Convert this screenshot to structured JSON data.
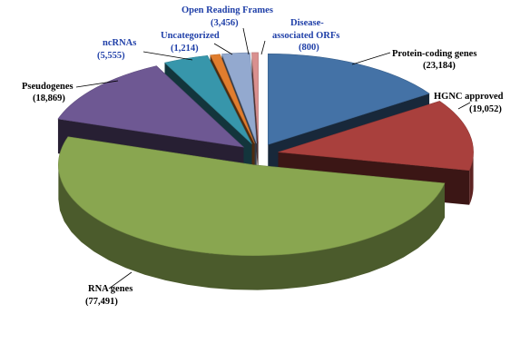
{
  "chart_data": {
    "type": "pie",
    "style": "3d-exploded",
    "title": "",
    "slices": [
      {
        "name": "Protein-coding genes",
        "value": "(23,184)",
        "num": 23184,
        "color": "#4472a6",
        "label_color": "#000000"
      },
      {
        "name": "HGNC approved",
        "value": "(19,052)",
        "num": 19052,
        "color": "#a9403d",
        "label_color": "#000000"
      },
      {
        "name": "RNA genes",
        "value": "(77,491)",
        "num": 77491,
        "color": "#89a650",
        "label_color": "#000000"
      },
      {
        "name": "Pseudogenes",
        "value": "(18,869)",
        "num": 18869,
        "color": "#6e5893",
        "label_color": "#000000"
      },
      {
        "name": "ncRNAs",
        "value": "(5,555)",
        "num": 5555,
        "color": "#3796ab",
        "label_color": "#1f3fa8"
      },
      {
        "name": "Uncategorized",
        "value": "(1,214)",
        "num": 1214,
        "color": "#e07d2e",
        "label_color": "#1f3fa8"
      },
      {
        "name": "Open Reading Frames",
        "value": "(3,456)",
        "num": 3456,
        "color": "#93a9cf",
        "label_color": "#1f3fa8"
      },
      {
        "name": "Disease-",
        "name_line2": "associated ORFs",
        "value": "(800)",
        "num": 800,
        "color": "#d9908f",
        "label_color": "#1f3fa8"
      }
    ]
  }
}
